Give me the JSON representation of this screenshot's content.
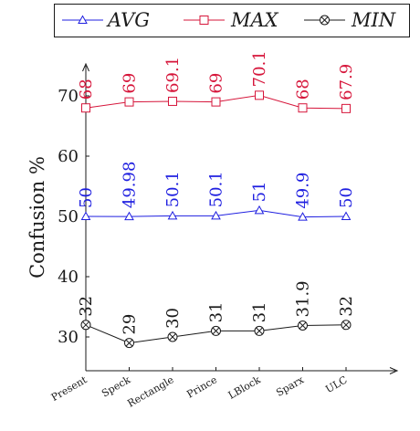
{
  "chart_data": {
    "type": "line",
    "title": "",
    "ylabel": "Confusion %",
    "xlabel": "",
    "categories": [
      "Present",
      "Speck",
      "Rectangle",
      "Prince",
      "LBlock",
      "Sparx",
      "ULC"
    ],
    "ylim": [
      25,
      75
    ],
    "yticks": [
      30,
      40,
      50,
      60,
      70
    ],
    "grid": false,
    "legend_position": "top",
    "series": [
      {
        "name": "AVG",
        "color": "#1f1fe0",
        "marker": "triangle",
        "values": [
          50,
          49.98,
          50.1,
          50.1,
          51,
          49.9,
          50
        ],
        "labels": [
          "50",
          "49.98",
          "50.1",
          "50.1",
          "51",
          "49.9",
          "50"
        ]
      },
      {
        "name": "MAX",
        "color": "#d6153a",
        "marker": "square",
        "values": [
          68,
          69,
          69.1,
          69,
          70.1,
          68,
          67.9
        ],
        "labels": [
          "68",
          "69",
          "69.1",
          "69",
          "70.1",
          "68",
          "67.9"
        ]
      },
      {
        "name": "MIN",
        "color": "#1a1a1a",
        "marker": "otimes",
        "values": [
          32,
          29,
          30,
          31,
          31,
          31.9,
          32
        ],
        "labels": [
          "32",
          "29",
          "30",
          "31",
          "31",
          "31.9",
          "32"
        ]
      }
    ]
  }
}
